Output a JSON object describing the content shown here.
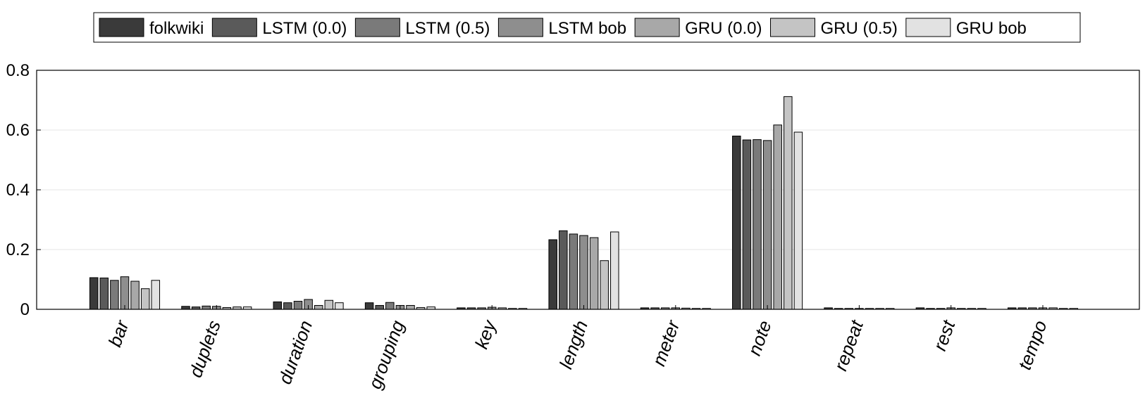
{
  "chart_data": {
    "type": "bar",
    "categories": [
      "bar",
      "duplets",
      "duration",
      "grouping",
      "key",
      "length",
      "meter",
      "note",
      "repeat",
      "rest",
      "tempo"
    ],
    "series": [
      {
        "name": "folkwiki",
        "color": "#3a3a3a",
        "values": [
          0.106,
          0.01,
          0.025,
          0.022,
          0.005,
          0.233,
          0.005,
          0.58,
          0.005,
          0.005,
          0.005
        ]
      },
      {
        "name": "LSTM (0.0)",
        "color": "#5a5a5a",
        "values": [
          0.105,
          0.008,
          0.022,
          0.013,
          0.005,
          0.263,
          0.005,
          0.567,
          0.003,
          0.003,
          0.005
        ]
      },
      {
        "name": "LSTM (0.5)",
        "color": "#7a7a7a",
        "values": [
          0.097,
          0.011,
          0.027,
          0.023,
          0.005,
          0.252,
          0.005,
          0.568,
          0.003,
          0.003,
          0.005
        ]
      },
      {
        "name": "LSTM bob",
        "color": "#8e8e8e",
        "values": [
          0.109,
          0.01,
          0.033,
          0.013,
          0.007,
          0.247,
          0.005,
          0.565,
          0.003,
          0.005,
          0.005
        ]
      },
      {
        "name": "GRU (0.0)",
        "color": "#a8a8a8",
        "values": [
          0.094,
          0.006,
          0.013,
          0.013,
          0.005,
          0.24,
          0.004,
          0.617,
          0.003,
          0.003,
          0.005
        ]
      },
      {
        "name": "GRU (0.5)",
        "color": "#c4c4c4",
        "values": [
          0.069,
          0.008,
          0.03,
          0.006,
          0.003,
          0.163,
          0.003,
          0.712,
          0.003,
          0.003,
          0.003
        ]
      },
      {
        "name": "GRU bob",
        "color": "#e2e2e2",
        "values": [
          0.097,
          0.008,
          0.022,
          0.008,
          0.003,
          0.259,
          0.003,
          0.593,
          0.003,
          0.003,
          0.003
        ]
      }
    ],
    "yticks": [
      "0",
      "0.2",
      "0.4",
      "0.6",
      "0.8"
    ],
    "ylim": [
      0,
      0.8
    ],
    "grid": "horizontal",
    "legend": "top",
    "title": "",
    "xlabel": "",
    "ylabel": ""
  }
}
